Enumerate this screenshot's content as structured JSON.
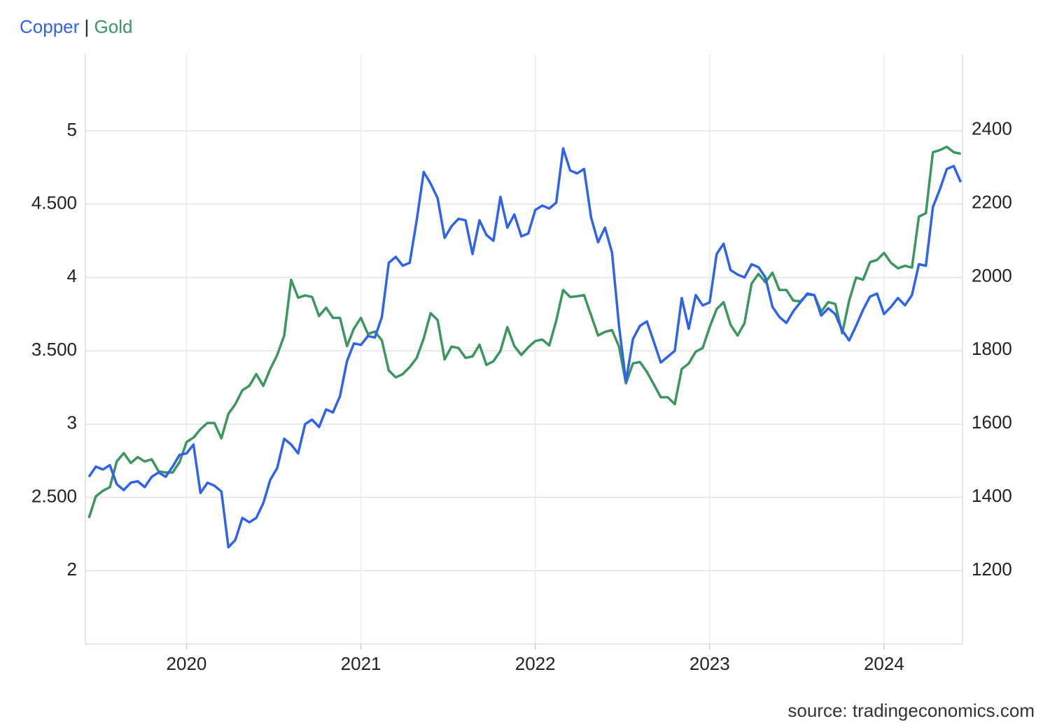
{
  "chart_data": {
    "type": "line",
    "source": "source: tradingeconomics.com",
    "legend_separator": "|",
    "xlim": [
      2019.42,
      2024.45
    ],
    "xticks": [
      2020,
      2021,
      2022,
      2023,
      2024
    ],
    "ylim": [
      1.5,
      5.52
    ],
    "yticks": [
      2,
      {
        "value": 2.5,
        "label": "2.500"
      },
      3,
      {
        "value": 3.5,
        "label": "3.500"
      },
      4,
      {
        "value": 4.5,
        "label": "4.500"
      },
      5
    ],
    "y2lim": [
      1000,
      2605
    ],
    "y2ticks": [
      1200,
      1400,
      1600,
      1800,
      2000,
      2200,
      2400
    ],
    "grid": true,
    "x": [
      2019.44,
      2019.48,
      2019.52,
      2019.56,
      2019.6,
      2019.64,
      2019.68,
      2019.72,
      2019.76,
      2019.8,
      2019.84,
      2019.88,
      2019.92,
      2019.96,
      2020.0,
      2020.04,
      2020.08,
      2020.12,
      2020.16,
      2020.2,
      2020.24,
      2020.28,
      2020.32,
      2020.36,
      2020.4,
      2020.44,
      2020.48,
      2020.52,
      2020.56,
      2020.6,
      2020.64,
      2020.68,
      2020.72,
      2020.76,
      2020.8,
      2020.84,
      2020.88,
      2020.92,
      2020.96,
      2021.0,
      2021.04,
      2021.08,
      2021.12,
      2021.16,
      2021.2,
      2021.24,
      2021.28,
      2021.32,
      2021.36,
      2021.4,
      2021.44,
      2021.48,
      2021.52,
      2021.56,
      2021.6,
      2021.64,
      2021.68,
      2021.72,
      2021.76,
      2021.8,
      2021.84,
      2021.88,
      2021.92,
      2021.96,
      2022.0,
      2022.04,
      2022.08,
      2022.12,
      2022.16,
      2022.2,
      2022.24,
      2022.28,
      2022.32,
      2022.36,
      2022.4,
      2022.44,
      2022.48,
      2022.52,
      2022.56,
      2022.6,
      2022.64,
      2022.68,
      2022.72,
      2022.76,
      2022.8,
      2022.84,
      2022.88,
      2022.92,
      2022.96,
      2023.0,
      2023.04,
      2023.08,
      2023.12,
      2023.16,
      2023.2,
      2023.24,
      2023.28,
      2023.32,
      2023.36,
      2023.4,
      2023.44,
      2023.48,
      2023.52,
      2023.56,
      2023.6,
      2023.64,
      2023.68,
      2023.72,
      2023.76,
      2023.8,
      2023.84,
      2023.88,
      2023.92,
      2023.96,
      2024.0,
      2024.04,
      2024.08,
      2024.12,
      2024.16,
      2024.2,
      2024.24,
      2024.28,
      2024.32,
      2024.36,
      2024.4,
      2024.44
    ],
    "series": [
      {
        "name": "Copper",
        "color": "#2f63ea",
        "values": [
          2.64,
          2.71,
          2.69,
          2.72,
          2.59,
          2.55,
          2.6,
          2.61,
          2.57,
          2.64,
          2.67,
          2.64,
          2.71,
          2.79,
          2.8,
          2.86,
          2.53,
          2.6,
          2.58,
          2.54,
          2.16,
          2.21,
          2.36,
          2.33,
          2.36,
          2.46,
          2.62,
          2.7,
          2.9,
          2.86,
          2.8,
          3.0,
          3.03,
          2.98,
          3.1,
          3.08,
          3.19,
          3.43,
          3.55,
          3.54,
          3.6,
          3.59,
          3.73,
          4.1,
          4.14,
          4.08,
          4.1,
          4.39,
          4.72,
          4.64,
          4.54,
          4.27,
          4.35,
          4.4,
          4.39,
          4.16,
          4.39,
          4.29,
          4.25,
          4.55,
          4.34,
          4.43,
          4.28,
          4.3,
          4.46,
          4.49,
          4.47,
          4.51,
          4.88,
          4.73,
          4.71,
          4.74,
          4.41,
          4.24,
          4.34,
          4.17,
          3.67,
          3.29,
          3.58,
          3.67,
          3.7,
          3.56,
          3.42,
          3.46,
          3.5,
          3.86,
          3.65,
          3.88,
          3.81,
          3.83,
          4.16,
          4.23,
          4.05,
          4.02,
          4.0,
          4.09,
          4.07,
          4.0,
          3.8,
          3.73,
          3.69,
          3.77,
          3.83,
          3.89,
          3.88,
          3.74,
          3.79,
          3.75,
          3.64,
          3.57,
          3.67,
          3.78,
          3.87,
          3.89,
          3.75,
          3.8,
          3.86,
          3.81,
          3.88,
          4.09,
          4.08,
          4.48,
          4.6,
          4.74,
          4.76,
          4.65
        ]
      },
      {
        "name": "Gold",
        "color": "#3d9560",
        "axis": "y2",
        "values": [
          1343,
          1402,
          1417,
          1427,
          1497,
          1520,
          1493,
          1509,
          1497,
          1503,
          1470,
          1467,
          1467,
          1495,
          1550,
          1562,
          1585,
          1602,
          1602,
          1560,
          1627,
          1653,
          1691,
          1703,
          1735,
          1703,
          1749,
          1787,
          1840,
          1992,
          1943,
          1949,
          1945,
          1893,
          1916,
          1888,
          1888,
          1811,
          1859,
          1888,
          1844,
          1851,
          1827,
          1745,
          1726,
          1735,
          1754,
          1779,
          1832,
          1901,
          1882,
          1775,
          1810,
          1806,
          1779,
          1783,
          1815,
          1760,
          1770,
          1798,
          1863,
          1811,
          1787,
          1808,
          1825,
          1829,
          1813,
          1880,
          1964,
          1945,
          1947,
          1950,
          1895,
          1840,
          1850,
          1855,
          1810,
          1710,
          1764,
          1768,
          1741,
          1707,
          1672,
          1672,
          1653,
          1749,
          1764,
          1796,
          1806,
          1863,
          1912,
          1931,
          1869,
          1840,
          1874,
          1981,
          2008,
          1985,
          2011,
          1964,
          1964,
          1935,
          1933,
          1952,
          1950,
          1905,
          1931,
          1926,
          1846,
          1935,
          1998,
          1992,
          2040,
          2046,
          2065,
          2038,
          2023,
          2030,
          2025,
          2164,
          2173,
          2339,
          2345,
          2354,
          2339,
          2335
        ]
      }
    ]
  }
}
